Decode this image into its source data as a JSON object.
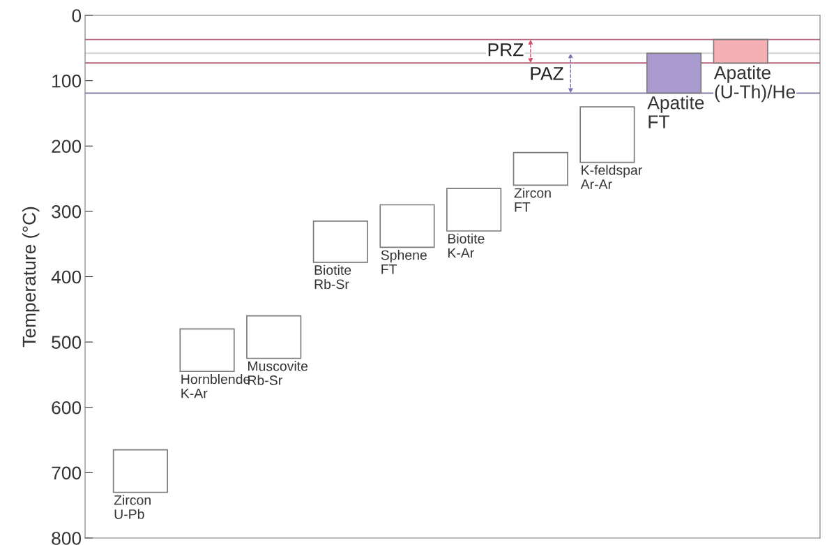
{
  "chart_data": {
    "type": "bar",
    "categories": [
      "Zircon\nU-Pb",
      "Hornblende\nK-Ar",
      "Muscovite\nRb-Sr",
      "Biotite\nRb-Sr",
      "Sphene\nFT",
      "Biotite\nK-Ar",
      "Zircon\nFT",
      "K-feldspar\nAr-Ar",
      "Apatite\nFT",
      "Apatite\n(U-Th)/He"
    ],
    "base": [
      665,
      480,
      460,
      315,
      290,
      265,
      210,
      140,
      58,
      37
    ],
    "values": [
      65,
      65,
      65,
      63,
      65,
      65,
      50,
      85,
      61,
      36
    ],
    "colors": [
      "#ffffff",
      "#ffffff",
      "#ffffff",
      "#ffffff",
      "#ffffff",
      "#ffffff",
      "#ffffff",
      "#ffffff",
      "#a99bd0",
      "#f4b0b3"
    ],
    "ylabel": "Temperature (°C)",
    "ylim": [
      800,
      0
    ],
    "yticks": [
      0,
      100,
      200,
      300,
      400,
      500,
      600,
      700,
      800
    ],
    "tick_labels": "y",
    "grid": false,
    "legend": false,
    "ref_lines": [
      {
        "axis": "y",
        "value": 37,
        "color": "#b5677a"
      },
      {
        "axis": "y",
        "value": 73,
        "color": "#b5677a"
      },
      {
        "axis": "y",
        "value": 58,
        "color": "#d3d3d3"
      },
      {
        "axis": "y",
        "value": 119,
        "color": "#8880a8"
      }
    ],
    "annotations": [
      "PRZ",
      "PAZ"
    ]
  }
}
